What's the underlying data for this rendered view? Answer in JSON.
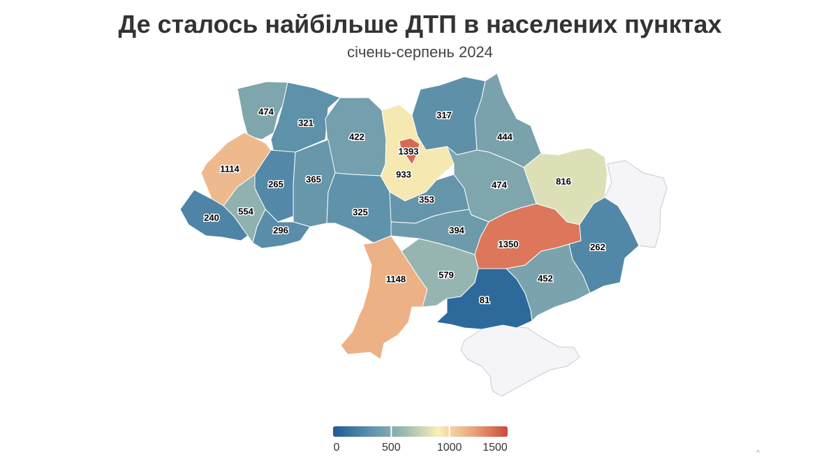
{
  "header": {
    "title": "Де сталось найбільше ДТП в населених пунктах",
    "subtitle": "січень-серпень 2024"
  },
  "map": {
    "no_data_color": "#f5f5f7",
    "regions": [
      {
        "id": "volyn",
        "value": 474
      },
      {
        "id": "rivne",
        "value": 321
      },
      {
        "id": "zhytomyr",
        "value": 422
      },
      {
        "id": "kyiv-oblast",
        "value": 933
      },
      {
        "id": "kyiv-city",
        "value": 1393
      },
      {
        "id": "chernihiv",
        "value": 317
      },
      {
        "id": "sumy",
        "value": 444
      },
      {
        "id": "kharkiv",
        "value": 816
      },
      {
        "id": "lviv",
        "value": 1114
      },
      {
        "id": "ternopil",
        "value": 265
      },
      {
        "id": "khmelnytskyi",
        "value": 365
      },
      {
        "id": "vinnytsia",
        "value": 325
      },
      {
        "id": "cherkasy",
        "value": 353
      },
      {
        "id": "poltava",
        "value": 474
      },
      {
        "id": "zakarpattia",
        "value": 240
      },
      {
        "id": "ivano-frankivsk",
        "value": 554
      },
      {
        "id": "chernivtsi",
        "value": 296
      },
      {
        "id": "kirovohrad",
        "value": 394
      },
      {
        "id": "dnipropetrovsk",
        "value": 1350
      },
      {
        "id": "donetsk",
        "value": 262
      },
      {
        "id": "odesa",
        "value": 1148
      },
      {
        "id": "mykolaiv",
        "value": 579
      },
      {
        "id": "kherson",
        "value": 81
      },
      {
        "id": "zaporizhzhia",
        "value": 452
      },
      {
        "id": "luhansk",
        "value": null
      },
      {
        "id": "crimea",
        "value": null
      }
    ]
  },
  "legend": {
    "min": 0,
    "max": 1500,
    "ticks": [
      0,
      500,
      1000,
      1500
    ],
    "colors": [
      "#1c5c96",
      "#5a8eaa",
      "#9ab8b0",
      "#f7f0b8",
      "#eba47c",
      "#cc4a3c"
    ]
  },
  "footer": {
    "corner_mark": "^"
  }
}
